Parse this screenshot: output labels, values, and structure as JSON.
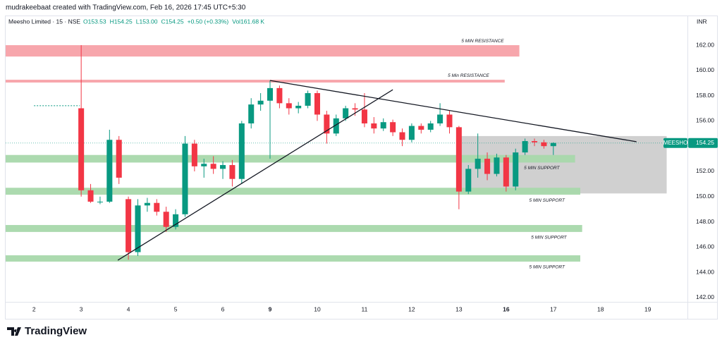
{
  "header": {
    "attribution": "mudrakeebaat created with TradingView.com, Feb 16, 2026 17:45 UTC+5:30",
    "symbol": "Meesho Limited · 15 · NSE",
    "ohlc": [
      "O153.53",
      "H154.25",
      "L153.00",
      "C154.25",
      "+0.50 (+0.33%)",
      "Vol161.68 K"
    ],
    "currency": "INR"
  },
  "logo": "TradingView",
  "chart_data": {
    "type": "candlestick",
    "up_color": "#089981",
    "down_color": "#f23645",
    "x": [
      1.0,
      1.2,
      1.4,
      1.6,
      1.8,
      2.0,
      2.2,
      2.4,
      2.6,
      2.8,
      3.0,
      3.2,
      3.4,
      3.6,
      3.8,
      4.0,
      4.2,
      4.4,
      4.6,
      4.8,
      5.0,
      5.2,
      5.4,
      5.6,
      5.8,
      6.0,
      6.2,
      6.4,
      6.6,
      6.8,
      7.0,
      7.2,
      7.4,
      7.6,
      7.8,
      8.0,
      8.2,
      8.4,
      8.6,
      8.8,
      9.0,
      9.2,
      9.4,
      9.6,
      9.8,
      10.0,
      10.2,
      10.4,
      10.6,
      10.8,
      11.0
    ],
    "open": [
      157,
      150.5,
      149.6,
      149.6,
      154.5,
      149.8,
      145.6,
      149.3,
      149.5,
      148.8,
      147.6,
      148.6,
      154.2,
      152.4,
      152.6,
      152.2,
      152.5,
      151.4,
      155.8,
      157.3,
      157.6,
      158.6,
      157.4,
      157,
      157.2,
      158.2,
      156.5,
      155,
      156.2,
      157,
      156.9,
      155.8,
      155.4,
      155.9,
      155.1,
      154.5,
      155.6,
      155.3,
      155.8,
      156.5,
      155.5,
      150.4,
      152.2,
      153,
      151.8,
      153.1,
      150.8,
      153.5,
      154.4,
      154.3,
      154
    ],
    "high": [
      162,
      151,
      150,
      155.3,
      154.8,
      150,
      149.8,
      149.9,
      149.8,
      149.2,
      149,
      154.8,
      154.5,
      153,
      153.2,
      152.8,
      152.9,
      156,
      157.8,
      158.2,
      159.2,
      158.8,
      157.8,
      157.5,
      158.4,
      158.4,
      156.8,
      156.5,
      157.2,
      157.4,
      158.2,
      156.3,
      156.2,
      156.1,
      155.4,
      155.8,
      155.8,
      156,
      157.4,
      156.8,
      155.6,
      152.5,
      155,
      153.5,
      153.4,
      153.3,
      153.8,
      154.6,
      154.6,
      154.5,
      154.3
    ],
    "low": [
      150,
      149.5,
      149.4,
      149.5,
      151,
      145,
      145.3,
      148.8,
      148.5,
      147.2,
      147.4,
      148.4,
      152,
      151.5,
      151.8,
      151.4,
      150.8,
      151,
      155.4,
      156.8,
      153,
      157,
      156.5,
      156.6,
      157,
      156,
      154.2,
      154.8,
      156,
      156.4,
      155.5,
      155,
      155.2,
      154.8,
      154,
      154.3,
      155,
      155.1,
      155.6,
      155,
      149,
      150.2,
      151.5,
      151.3,
      151.6,
      150.4,
      150.5,
      153.3,
      154,
      153.8,
      153.3
    ],
    "close": [
      150.5,
      149.6,
      149.6,
      154.5,
      151.5,
      145.6,
      149.3,
      149.5,
      148.8,
      147.6,
      148.6,
      154.2,
      152.4,
      152.6,
      152.2,
      152.5,
      151.4,
      155.8,
      157.3,
      157.6,
      158.6,
      157.4,
      157,
      157.2,
      158.2,
      156.5,
      155,
      156.2,
      157,
      156.9,
      155.8,
      155.4,
      155.9,
      155.1,
      154.5,
      155.6,
      155.3,
      155.8,
      156.5,
      155.5,
      150.4,
      152.2,
      153,
      151.8,
      153.1,
      150.8,
      153.5,
      154.4,
      154.3,
      154,
      154.25
    ],
    "xlim": [
      -0.6,
      13.84
    ],
    "ylim": [
      141.66,
      164.35
    ],
    "xticks": [
      {
        "value": 0,
        "label": "2"
      },
      {
        "value": 1,
        "label": "3"
      },
      {
        "value": 2,
        "label": "4"
      },
      {
        "value": 3,
        "label": "5"
      },
      {
        "value": 4,
        "label": "6"
      },
      {
        "value": 5,
        "label": "9"
      },
      {
        "value": 6,
        "label": "10"
      },
      {
        "value": 7,
        "label": "11"
      },
      {
        "value": 8,
        "label": "12"
      },
      {
        "value": 9,
        "label": "13"
      },
      {
        "value": 10,
        "label": "16"
      },
      {
        "value": 11,
        "label": "17"
      },
      {
        "value": 12,
        "label": "18"
      },
      {
        "value": 13,
        "label": "19"
      }
    ],
    "yticks": [
      {
        "value": 142,
        "label": "142.00"
      },
      {
        "value": 144,
        "label": "144.00"
      },
      {
        "value": 146,
        "label": "146.00"
      },
      {
        "value": 148,
        "label": "148.00"
      },
      {
        "value": 150,
        "label": "150.00"
      },
      {
        "value": 152,
        "label": "152.00"
      },
      {
        "value": 154,
        "label": "154.00"
      },
      {
        "value": 156,
        "label": "156.00"
      },
      {
        "value": 158,
        "label": "158.00"
      },
      {
        "value": 160,
        "label": "160.00"
      },
      {
        "value": 162,
        "label": "162.00"
      }
    ],
    "zones": [
      {
        "label": "5 MIN RESISTANCE",
        "x": [
          -0.6,
          10.28
        ],
        "y": [
          161.1,
          162
        ],
        "color": "#f7a1a8"
      },
      {
        "label": "5 Min RESISTANCE",
        "x": [
          -0.6,
          9.97
        ],
        "y": [
          159.04,
          159.26
        ],
        "color": "#f7a1a8"
      },
      {
        "label": "5 MIN SUPPORT",
        "x": [
          -0.6,
          11.46
        ],
        "y": [
          152.7,
          153.3
        ],
        "color": "#a8d8ab"
      },
      {
        "label": "5 MIN SUPPORT",
        "x": [
          -0.6,
          11.57
        ],
        "y": [
          150.15,
          150.7
        ],
        "color": "#a8d8ab"
      },
      {
        "label": "5 MIN SUPPORT",
        "x": [
          -0.6,
          11.61
        ],
        "y": [
          147.2,
          147.75
        ],
        "color": "#a8d8ab"
      },
      {
        "label": "5 MIN SUPPORT",
        "x": [
          -0.6,
          11.57
        ],
        "y": [
          144.85,
          145.35
        ],
        "color": "#a8d8ab"
      }
    ],
    "box": {
      "x": [
        9.03,
        13.4
      ],
      "y": [
        150.25,
        154.8
      ],
      "color": "#c8c8c8"
    },
    "trendlines": [
      {
        "x": [
          1.776,
          7.6
        ],
        "y": [
          144.96,
          158.47
        ]
      },
      {
        "x": [
          5.0,
          12.76
        ],
        "y": [
          159.2,
          154.35
        ]
      }
    ],
    "prev_close": {
      "x": [
        0,
        0.97
      ],
      "y": 157.2
    },
    "last_label": "MEESHO",
    "last_price": 154.25
  }
}
